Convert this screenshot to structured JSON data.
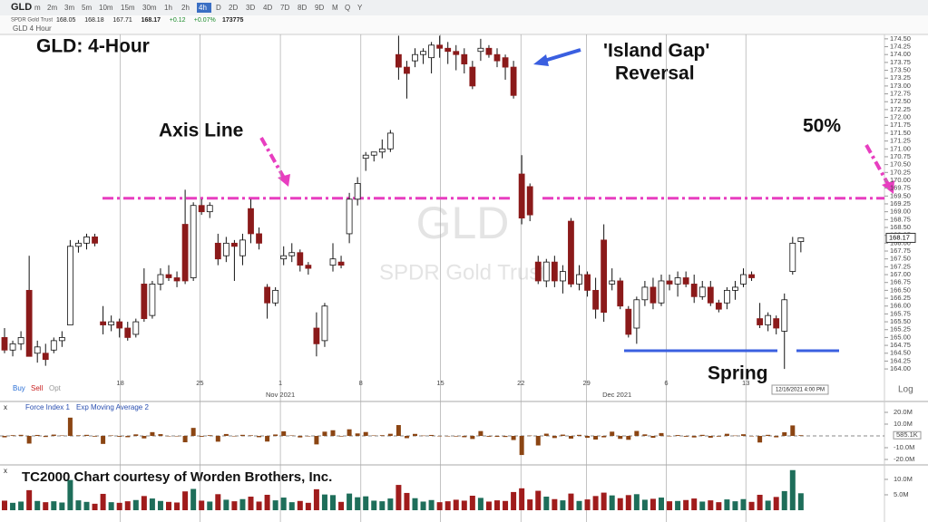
{
  "toolbar": {
    "symbol": "GLD",
    "timeframes": [
      "m",
      "2m",
      "3m",
      "5m",
      "10m",
      "15m",
      "30m",
      "1h",
      "2h",
      "4h",
      "D",
      "2D",
      "3D",
      "4D",
      "7D",
      "8D",
      "9D",
      "M",
      "Q",
      "Y"
    ],
    "name": "SPDR Gold Trust",
    "quote": [
      168.05,
      168.18,
      167.71,
      168.17,
      "+0.12",
      "+0.07%",
      173775
    ],
    "chart_label": "GLD 4 Hour",
    "order_buttons": [
      "Buy",
      "Sell",
      "Opt"
    ],
    "scale": "Log"
  },
  "chart_data": [
    {
      "type": "candlestick",
      "title": "GLD:  4-Hour",
      "watermark": "GLD",
      "watermark_subtitle": "SPDR Gold Trust",
      "annotations": [
        "Axis Line",
        "'Island Gap'",
        "Reversal",
        "50%",
        "Spring"
      ],
      "date_badge": "12/16/2021 4:00 PM",
      "up_color": "#ffffff",
      "down_color": "#8b1a1a",
      "open": [
        165.0,
        164.6,
        164.8,
        166.5,
        164.5,
        164.5,
        164.6,
        164.9,
        165.4,
        167.9,
        168.0,
        168.2,
        165.5,
        165.4,
        165.5,
        165.3,
        165.1,
        166.7,
        165.7,
        166.7,
        167.0,
        166.9,
        168.6,
        166.9,
        169.2,
        169.0,
        168.0,
        167.6,
        168.0,
        167.6,
        169.1,
        168.3,
        166.6,
        166.1,
        167.5,
        167.6,
        167.7,
        167.3,
        165.3,
        164.9,
        167.3,
        167.4,
        168.3,
        169.4,
        170.7,
        170.8,
        170.9,
        171.0,
        174.0,
        173.6,
        173.8,
        174.0,
        173.9,
        174.3,
        174.2,
        174.1,
        174.0,
        173.6,
        174.1,
        174.2,
        174.0,
        173.9,
        173.6,
        170.2,
        169.8,
        167.4,
        166.8,
        167.4,
        166.8,
        168.7,
        166.7,
        167.0,
        166.5,
        168.1,
        166.7,
        166.8,
        165.9,
        165.3,
        166.2,
        166.6,
        166.1,
        166.8,
        166.7,
        166.9,
        166.7,
        166.3,
        166.6,
        166.1,
        166.1,
        166.5,
        166.7,
        167.0,
        165.6,
        165.4,
        165.6,
        165.2,
        167.1,
        168.05
      ],
      "high": [
        165.3,
        164.9,
        165.2,
        167.6,
        164.9,
        164.8,
        165.0,
        165.2,
        168.1,
        168.1,
        168.3,
        168.3,
        166.0,
        165.7,
        165.6,
        165.5,
        165.6,
        167.2,
        166.8,
        167.2,
        167.3,
        167.1,
        169.7,
        169.3,
        169.4,
        169.3,
        168.3,
        168.2,
        168.1,
        168.3,
        169.4,
        168.5,
        166.7,
        166.6,
        167.9,
        168.0,
        167.8,
        167.4,
        165.8,
        166.1,
        168.0,
        167.6,
        169.6,
        170.1,
        170.9,
        170.9,
        171.3,
        171.6,
        174.6,
        173.8,
        174.2,
        174.2,
        174.4,
        174.6,
        174.4,
        174.3,
        174.2,
        173.8,
        174.5,
        174.3,
        174.2,
        174.0,
        173.8,
        170.8,
        169.9,
        167.6,
        167.5,
        167.6,
        167.3,
        168.8,
        167.3,
        167.1,
        166.9,
        168.6,
        167.2,
        166.9,
        166.0,
        166.3,
        166.8,
        166.9,
        167.0,
        167.0,
        167.1,
        167.1,
        167.0,
        166.8,
        166.8,
        166.2,
        166.6,
        166.8,
        167.2,
        167.1,
        166.1,
        165.8,
        165.7,
        166.4,
        168.2,
        168.18
      ],
      "low": [
        164.5,
        164.4,
        164.6,
        164.4,
        164.2,
        164.1,
        164.5,
        164.7,
        165.4,
        167.7,
        167.8,
        167.9,
        165.1,
        165.2,
        165.0,
        164.9,
        165.0,
        165.5,
        165.6,
        166.5,
        166.8,
        166.6,
        166.7,
        166.8,
        168.9,
        168.8,
        167.3,
        167.4,
        166.8,
        167.3,
        168.0,
        167.8,
        165.6,
        166.0,
        167.3,
        167.4,
        167.1,
        167.0,
        164.4,
        164.7,
        167.1,
        167.2,
        168.0,
        169.2,
        170.3,
        170.6,
        170.7,
        170.9,
        173.2,
        172.6,
        173.6,
        173.7,
        173.4,
        173.9,
        173.7,
        173.5,
        173.4,
        172.9,
        173.8,
        173.9,
        173.6,
        173.2,
        172.6,
        168.6,
        168.7,
        166.7,
        166.6,
        166.6,
        166.4,
        166.6,
        166.5,
        166.3,
        165.6,
        165.5,
        166.5,
        165.9,
        165.0,
        164.8,
        166.0,
        165.9,
        166.0,
        166.5,
        166.3,
        166.6,
        166.1,
        166.2,
        166.0,
        165.8,
        165.9,
        166.2,
        166.6,
        166.8,
        165.3,
        165.2,
        165.1,
        164.0,
        167.0,
        167.71
      ],
      "close": [
        164.6,
        164.8,
        165.0,
        164.4,
        164.7,
        164.3,
        164.9,
        165.0,
        167.9,
        168.0,
        168.2,
        168.0,
        165.4,
        165.5,
        165.3,
        165.0,
        165.5,
        165.6,
        166.7,
        167.0,
        166.9,
        166.8,
        166.8,
        169.2,
        169.0,
        169.2,
        167.5,
        168.0,
        167.9,
        168.1,
        168.3,
        168.0,
        166.1,
        166.5,
        167.6,
        167.7,
        167.3,
        167.2,
        164.8,
        166.0,
        167.5,
        167.3,
        169.4,
        169.9,
        170.8,
        170.9,
        171.0,
        171.5,
        173.6,
        173.4,
        174.0,
        174.1,
        174.3,
        174.2,
        174.1,
        174.0,
        173.7,
        173.0,
        174.2,
        174.0,
        173.8,
        173.6,
        172.7,
        168.8,
        168.9,
        166.8,
        167.4,
        166.8,
        167.1,
        166.7,
        167.0,
        166.5,
        165.9,
        165.8,
        166.8,
        166.0,
        165.1,
        166.2,
        166.6,
        166.1,
        166.8,
        166.7,
        166.9,
        166.7,
        166.3,
        166.6,
        166.1,
        165.9,
        166.5,
        166.6,
        167.0,
        166.9,
        165.4,
        165.7,
        165.3,
        166.2,
        168.0,
        168.17
      ],
      "ylim": [
        163.34,
        174.64
      ],
      "yticks": [
        {
          "value": 174.5,
          "label": "174.50"
        },
        {
          "value": 174.25,
          "label": "174.25"
        },
        {
          "value": 174,
          "label": "174.00"
        },
        {
          "value": 173.75,
          "label": "173.75"
        },
        {
          "value": 173.5,
          "label": "173.50"
        },
        {
          "value": 173.25,
          "label": "173.25"
        },
        {
          "value": 173,
          "label": "173.00"
        },
        {
          "value": 172.75,
          "label": "172.75"
        },
        {
          "value": 172.5,
          "label": "172.50"
        },
        {
          "value": 172.25,
          "label": "172.25"
        },
        {
          "value": 172,
          "label": "172.00"
        },
        {
          "value": 171.75,
          "label": "171.75"
        },
        {
          "value": 171.5,
          "label": "171.50"
        },
        {
          "value": 171.25,
          "label": "171.25"
        },
        {
          "value": 171,
          "label": "171.00"
        },
        {
          "value": 170.75,
          "label": "170.75"
        },
        {
          "value": 170.5,
          "label": "170.50"
        },
        {
          "value": 170.25,
          "label": "170.25"
        },
        {
          "value": 170,
          "label": "170.00"
        },
        {
          "value": 169.75,
          "label": "169.75"
        },
        {
          "value": 169.5,
          "label": "169.50"
        },
        {
          "value": 169.25,
          "label": "169.25"
        },
        {
          "value": 169,
          "label": "169.00"
        },
        {
          "value": 168.75,
          "label": "168.75"
        },
        {
          "value": 168.5,
          "label": "168.50"
        },
        {
          "value": 168.25,
          "label": "168.25"
        },
        {
          "value": 168,
          "label": "168.00"
        },
        {
          "value": 167.75,
          "label": "167.75"
        },
        {
          "value": 167.5,
          "label": "167.50"
        },
        {
          "value": 167.25,
          "label": "167.25"
        },
        {
          "value": 167,
          "label": "167.00"
        },
        {
          "value": 166.75,
          "label": "166.75"
        },
        {
          "value": 166.5,
          "label": "166.50"
        },
        {
          "value": 166.25,
          "label": "166.25"
        },
        {
          "value": 166,
          "label": "166.00"
        },
        {
          "value": 165.75,
          "label": "165.75"
        },
        {
          "value": 165.5,
          "label": "165.50"
        },
        {
          "value": 165.25,
          "label": "165.25"
        },
        {
          "value": 165,
          "label": "165.00"
        },
        {
          "value": 164.75,
          "label": "164.75"
        },
        {
          "value": 164.5,
          "label": "164.50"
        },
        {
          "value": 164.25,
          "label": "164.25"
        },
        {
          "value": 164,
          "label": "164.00"
        }
      ],
      "xticks": [
        {
          "value": 14.1,
          "label": "18"
        },
        {
          "value": 23.8,
          "label": "25"
        },
        {
          "value": 33.6,
          "label": "1"
        },
        {
          "value": 43.4,
          "label": "8"
        },
        {
          "value": 53.1,
          "label": "15"
        },
        {
          "value": 62.9,
          "label": "22"
        },
        {
          "value": 70.9,
          "label": "29"
        },
        {
          "value": 80.6,
          "label": "6"
        },
        {
          "value": 90.3,
          "label": "13"
        }
      ],
      "month_ticks": [
        {
          "value": 33.6,
          "label": "Nov 2021"
        },
        {
          "value": 74.6,
          "label": "Dec 2021"
        }
      ],
      "hlines": [
        {
          "value": 169.43,
          "color": "#e83ec0"
        },
        {
          "value": 164.58,
          "color": "#3a5fe0"
        }
      ]
    },
    {
      "type": "bar",
      "series": [
        {
          "name": "Force Index 1",
          "color": "#8b4513",
          "values": [
            -1.2,
            0.6,
            0.9,
            -6.5,
            0.8,
            -0.9,
            1.1,
            0.4,
            15.5,
            0.5,
            0.9,
            -0.6,
            -6.8,
            0.4,
            -0.7,
            -1.1,
            1.3,
            -2.1,
            3.2,
            1.5,
            -0.3,
            -0.4,
            -5.4,
            6.8,
            -0.7,
            0.6,
            -4.9,
            1.6,
            -0.4,
            0.9,
            0.5,
            -1.1,
            -4.8,
            1.2,
            3.9,
            0.4,
            -1.3,
            -0.4,
            -7.2,
            3.6,
            4.8,
            -0.5,
            5.6,
            2.1,
            3.3,
            0.4,
            0.6,
            1.8,
            9.2,
            -1.9,
            1.7,
            0.3,
            0.8,
            -0.3,
            -0.4,
            -0.5,
            -1.1,
            -2.6,
            4.1,
            -0.7,
            -0.8,
            -0.9,
            -3.5,
            -16.2,
            0.3,
            -8.1,
            1.9,
            -1.8,
            1.1,
            -2.3,
            0.9,
            -1.6,
            -3.1,
            -1.2,
            3.6,
            -2.5,
            -3.3,
            4.2,
            1.3,
            -1.6,
            2.4,
            -0.3,
            0.7,
            -0.7,
            -1.3,
            0.9,
            -1.5,
            -0.6,
            1.8,
            0.3,
            1.4,
            -0.4,
            -5.6,
            0.9,
            -1.2,
            3.1,
            8.9,
            0.5851
          ]
        }
      ],
      "overlay": "Exp Moving Average 2",
      "last_value_label": "585.1K",
      "ylim": [
        -22.3,
        22.3
      ],
      "yticks": [
        {
          "value": 20,
          "label": "20.0M"
        },
        {
          "value": 10,
          "label": "10.0M"
        },
        {
          "value": -10,
          "label": "-10.0M"
        },
        {
          "value": -20,
          "label": "-20.0M"
        }
      ]
    },
    {
      "type": "volume",
      "title": "TC2000 Chart courtesy of Worden Brothers, Inc.",
      "up_color": "#1e6e5a",
      "down_color": "#a01c1c",
      "values": [
        3.1,
        2.4,
        2.8,
        6.5,
        3.0,
        2.6,
        2.9,
        2.5,
        9.8,
        3.2,
        2.7,
        2.1,
        5.3,
        2.6,
        2.4,
        2.9,
        3.3,
        4.6,
        3.8,
        3.0,
        2.7,
        2.5,
        6.1,
        6.9,
        3.1,
        2.8,
        5.2,
        3.4,
        2.9,
        3.6,
        4.4,
        2.8,
        5.0,
        3.2,
        4.1,
        2.6,
        3.0,
        2.4,
        6.8,
        5.1,
        4.9,
        2.7,
        5.4,
        4.2,
        4.5,
        3.1,
        2.9,
        3.8,
        8.2,
        5.6,
        3.9,
        2.8,
        3.3,
        2.6,
        2.9,
        3.4,
        3.1,
        4.7,
        4.0,
        2.8,
        3.2,
        3.0,
        5.9,
        7.1,
        3.5,
        6.3,
        4.4,
        3.6,
        3.2,
        5.4,
        3.0,
        3.5,
        4.6,
        5.7,
        4.8,
        3.9,
        4.9,
        5.2,
        3.4,
        3.7,
        4.1,
        2.9,
        3.0,
        3.3,
        3.8,
        2.8,
        3.2,
        2.6,
        3.5,
        2.9,
        3.6,
        2.7,
        5.0,
        3.1,
        4.3,
        6.2,
        13.0,
        5.5
      ],
      "ylim": [
        0,
        14.1
      ],
      "yticks": [
        {
          "value": 10,
          "label": "10.0M"
        },
        {
          "value": 5,
          "label": "5.0M"
        }
      ]
    }
  ]
}
